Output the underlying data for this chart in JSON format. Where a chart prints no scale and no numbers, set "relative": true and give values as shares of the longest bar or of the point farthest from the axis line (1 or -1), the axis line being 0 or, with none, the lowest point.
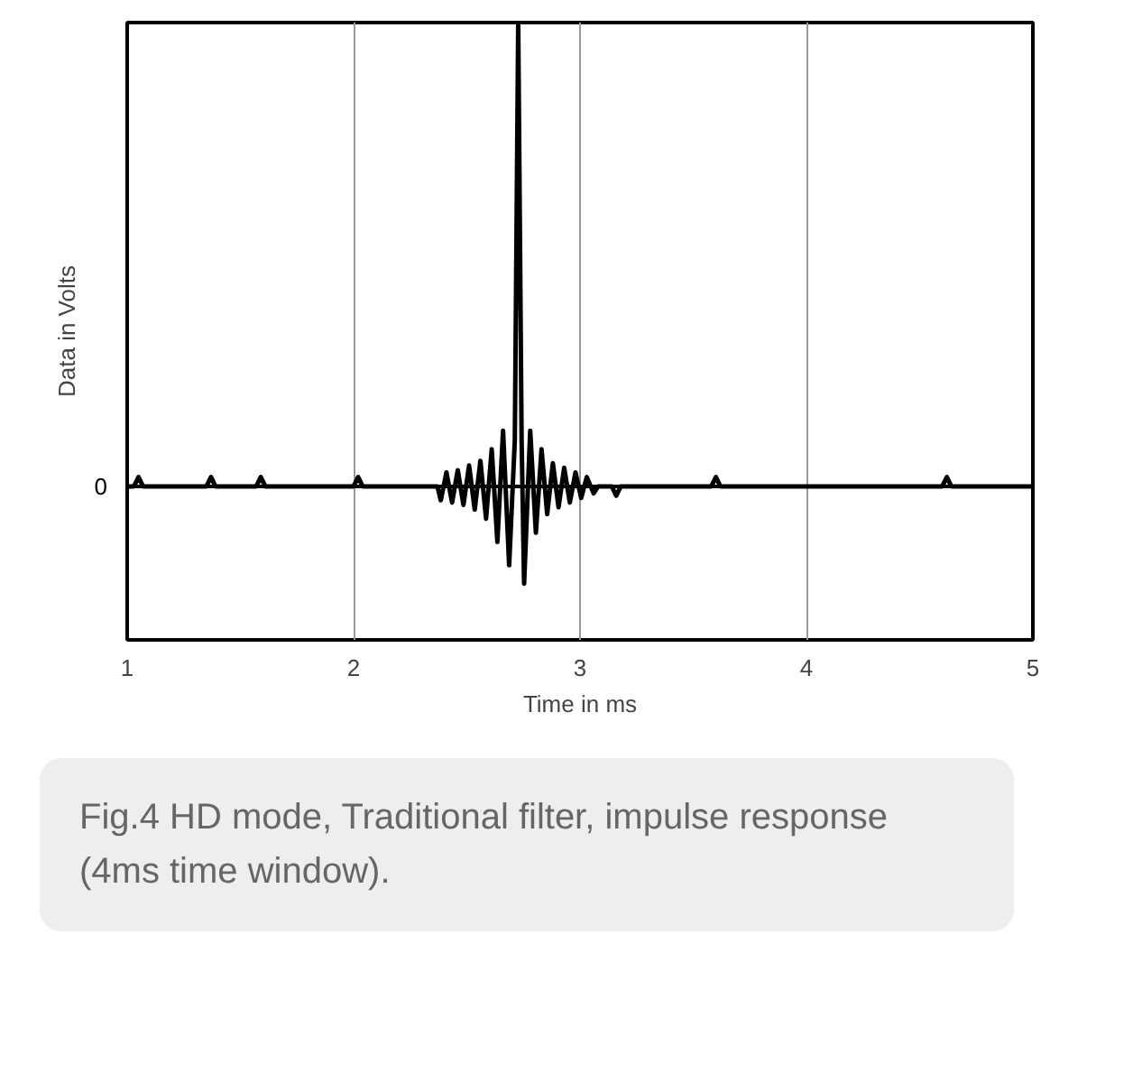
{
  "chart_data": {
    "type": "line",
    "relative": true,
    "xlabel": "Time in ms",
    "ylabel": "Data in Volts",
    "xlim": [
      1,
      5
    ],
    "xticks": [
      1,
      2,
      3,
      4,
      5
    ],
    "grid": "x",
    "marker": "none",
    "line_style": "solid",
    "x": [
      1.0,
      1.03,
      1.05,
      1.07,
      1.35,
      1.37,
      1.39,
      1.57,
      1.59,
      1.61,
      2.0,
      2.02,
      2.04,
      2.37,
      2.385,
      2.41,
      2.435,
      2.46,
      2.485,
      2.51,
      2.535,
      2.56,
      2.585,
      2.61,
      2.635,
      2.66,
      2.687,
      2.712,
      2.727,
      2.742,
      2.753,
      2.78,
      2.805,
      2.83,
      2.855,
      2.88,
      2.905,
      2.93,
      2.955,
      2.98,
      3.005,
      3.03,
      3.06,
      3.08,
      3.14,
      3.16,
      3.18,
      3.58,
      3.6,
      3.62,
      4.6,
      4.62,
      4.64,
      5.0
    ],
    "series": [
      {
        "color": "#000000",
        "values": [
          0,
          0,
          0.02,
          0,
          0,
          0.02,
          0,
          0,
          0.02,
          0,
          0,
          0.02,
          0,
          0,
          -0.03,
          0.03,
          -0.035,
          0.035,
          -0.04,
          0.045,
          -0.05,
          0.055,
          -0.07,
          0.08,
          -0.12,
          0.12,
          -0.17,
          0.1,
          1.0,
          0.1,
          -0.21,
          0.12,
          -0.1,
          0.08,
          -0.06,
          0.05,
          -0.045,
          0.04,
          -0.035,
          0.03,
          -0.025,
          0.02,
          -0.015,
          0,
          0,
          -0.02,
          0,
          0,
          0.02,
          0,
          0,
          0.02,
          0,
          0
        ]
      }
    ],
    "ref_lines": [
      {
        "axis": "y",
        "value": 0,
        "label": "0",
        "color": "#000000"
      }
    ],
    "annotations": [
      "Fig.4 HD mode, Traditional filter, impulse response (4ms time window)."
    ]
  }
}
